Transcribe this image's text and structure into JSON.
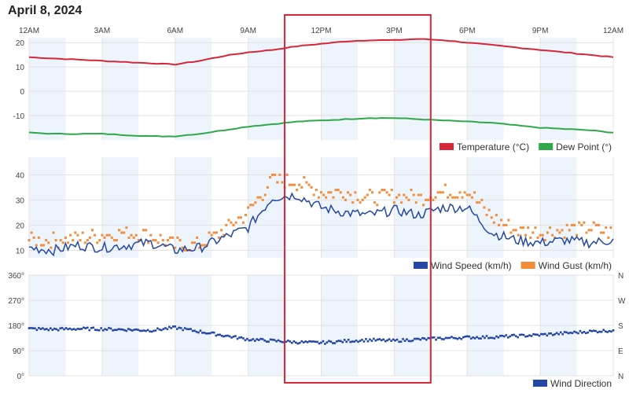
{
  "title": "April 8, 2024",
  "x_axis": {
    "labels": [
      "12AM",
      "3AM",
      "6AM",
      "9AM",
      "12PM",
      "3PM",
      "6PM",
      "9PM",
      "12AM"
    ]
  },
  "chart_data": [
    {
      "type": "line",
      "x_hours": [
        0,
        1,
        2,
        3,
        4,
        5,
        6,
        7,
        8,
        9,
        10,
        11,
        12,
        13,
        14,
        15,
        16,
        17,
        18,
        19,
        20,
        21,
        22,
        23,
        24
      ],
      "ylim": [
        -20,
        22
      ],
      "y_ticks": [
        "20",
        "10",
        "0",
        "-10"
      ],
      "series": [
        {
          "name": "Temperature (°C)",
          "color": "#d62739",
          "values": [
            14,
            13.5,
            13,
            12.5,
            12,
            11.5,
            11,
            12.5,
            14.5,
            16,
            17,
            18.5,
            19.5,
            20.5,
            21,
            21,
            21.5,
            21,
            20,
            19,
            18,
            17,
            16,
            15,
            14
          ]
        },
        {
          "name": "Dew Point (°)",
          "color": "#2ea84a",
          "values": [
            -17,
            -17.5,
            -17.5,
            -17.5,
            -18,
            -18.5,
            -18.5,
            -17.5,
            -16,
            -14.5,
            -13.5,
            -12.5,
            -12,
            -11.5,
            -11,
            -11,
            -11.5,
            -12,
            -12.5,
            -13,
            -14,
            -15,
            -15.5,
            -16,
            -17
          ]
        }
      ]
    },
    {
      "type": "line",
      "x_hours": [
        0,
        1,
        2,
        3,
        4,
        5,
        6,
        7,
        8,
        9,
        10,
        11,
        12,
        13,
        14,
        15,
        16,
        17,
        18,
        19,
        20,
        21,
        22,
        23,
        24
      ],
      "ylim": [
        7,
        47
      ],
      "y_ticks": [
        "40",
        "30",
        "20",
        "10"
      ],
      "series": [
        {
          "name": "Wind Speed (km/h)",
          "color": "#2447a5",
          "values": [
            11,
            10,
            12,
            11,
            12,
            13,
            10,
            11,
            15,
            19,
            31,
            32,
            27,
            25,
            24,
            26,
            24,
            27,
            27,
            17,
            14,
            13,
            14,
            13,
            14
          ]
        },
        {
          "name": "Wind Gust (km/h)",
          "color": "#f28c38",
          "values": [
            14,
            14,
            15,
            16,
            17,
            16,
            12,
            12,
            18,
            25,
            38,
            37,
            33,
            33,
            31,
            32,
            31,
            33,
            34,
            23,
            18,
            17,
            18,
            19,
            17
          ]
        }
      ]
    },
    {
      "type": "scatter",
      "x_hours": [
        0,
        1,
        2,
        3,
        4,
        5,
        6,
        7,
        8,
        9,
        10,
        11,
        12,
        13,
        14,
        15,
        16,
        17,
        18,
        19,
        20,
        21,
        22,
        23,
        24
      ],
      "ylim": [
        0,
        360
      ],
      "y_ticks": [
        "360°",
        "270°",
        "180°",
        "90°",
        "0°"
      ],
      "right_ticks": [
        "N",
        "W",
        "S",
        "E",
        "N"
      ],
      "series": [
        {
          "name": "Wind Direction",
          "color": "#2447a5",
          "values": [
            168,
            166,
            168,
            167,
            165,
            162,
            172,
            158,
            144,
            130,
            125,
            120,
            118,
            124,
            128,
            125,
            130,
            134,
            137,
            138,
            142,
            146,
            152,
            158,
            162
          ]
        }
      ]
    }
  ],
  "highlight": {
    "from_hour": 10.5,
    "to_hour": 16.5,
    "color": "#d62739"
  }
}
